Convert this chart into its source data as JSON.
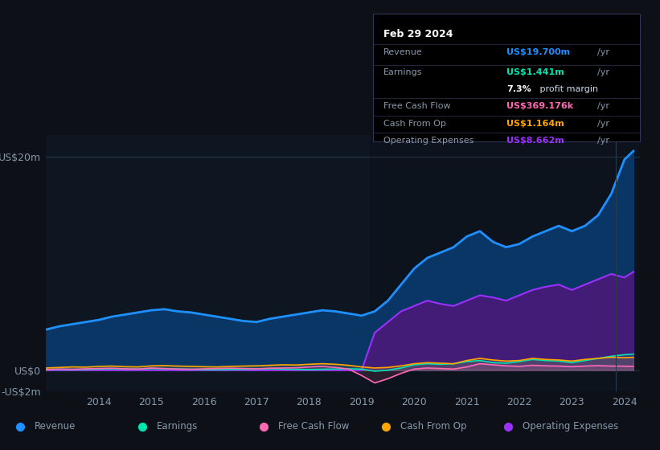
{
  "bg_color": "#0d1117",
  "plot_bg_color": "#0e1621",
  "text_color": "#8899aa",
  "years": [
    2013.0,
    2013.25,
    2013.5,
    2013.75,
    2014.0,
    2014.25,
    2014.5,
    2014.75,
    2015.0,
    2015.25,
    2015.5,
    2015.75,
    2016.0,
    2016.25,
    2016.5,
    2016.75,
    2017.0,
    2017.25,
    2017.5,
    2017.75,
    2018.0,
    2018.25,
    2018.5,
    2018.75,
    2019.0,
    2019.25,
    2019.5,
    2019.75,
    2020.0,
    2020.25,
    2020.5,
    2020.75,
    2021.0,
    2021.25,
    2021.5,
    2021.75,
    2022.0,
    2022.25,
    2022.5,
    2022.75,
    2023.0,
    2023.25,
    2023.5,
    2023.75,
    2024.0,
    2024.17
  ],
  "revenue": [
    3.8,
    4.1,
    4.3,
    4.5,
    4.7,
    5.0,
    5.2,
    5.4,
    5.6,
    5.7,
    5.5,
    5.4,
    5.2,
    5.0,
    4.8,
    4.6,
    4.5,
    4.8,
    5.0,
    5.2,
    5.4,
    5.6,
    5.5,
    5.3,
    5.1,
    5.5,
    6.5,
    8.0,
    9.5,
    10.5,
    11.0,
    11.5,
    12.5,
    13.0,
    12.0,
    11.5,
    11.8,
    12.5,
    13.0,
    13.5,
    13.0,
    13.5,
    14.5,
    16.5,
    19.7,
    20.5
  ],
  "earnings": [
    0.05,
    0.08,
    0.06,
    0.07,
    0.1,
    0.12,
    0.1,
    0.09,
    0.15,
    0.12,
    0.1,
    0.08,
    0.05,
    0.04,
    0.06,
    0.08,
    0.1,
    0.12,
    0.1,
    0.08,
    0.05,
    0.08,
    0.1,
    0.12,
    0.1,
    -0.1,
    0.0,
    0.2,
    0.5,
    0.6,
    0.55,
    0.6,
    0.8,
    0.9,
    0.7,
    0.65,
    0.8,
    1.0,
    0.9,
    0.85,
    0.7,
    0.9,
    1.1,
    1.3,
    1.441,
    1.5
  ],
  "free_cash_flow": [
    0.05,
    0.1,
    0.08,
    0.12,
    0.15,
    0.18,
    0.12,
    0.1,
    0.2,
    0.15,
    0.1,
    0.08,
    0.12,
    0.15,
    0.18,
    0.15,
    0.12,
    0.18,
    0.2,
    0.22,
    0.3,
    0.35,
    0.25,
    0.1,
    -0.5,
    -1.2,
    -0.8,
    -0.3,
    0.1,
    0.2,
    0.15,
    0.1,
    0.3,
    0.6,
    0.5,
    0.4,
    0.35,
    0.45,
    0.4,
    0.38,
    0.32,
    0.38,
    0.42,
    0.38,
    0.369,
    0.35
  ],
  "cash_from_op": [
    0.2,
    0.25,
    0.3,
    0.28,
    0.35,
    0.38,
    0.32,
    0.3,
    0.4,
    0.42,
    0.38,
    0.35,
    0.32,
    0.3,
    0.35,
    0.38,
    0.4,
    0.45,
    0.5,
    0.48,
    0.55,
    0.6,
    0.55,
    0.45,
    0.3,
    0.2,
    0.25,
    0.4,
    0.6,
    0.7,
    0.65,
    0.6,
    0.9,
    1.1,
    0.95,
    0.85,
    0.9,
    1.1,
    1.0,
    0.95,
    0.85,
    1.0,
    1.1,
    1.2,
    1.164,
    1.2
  ],
  "op_expenses": [
    0.0,
    0.0,
    0.0,
    0.0,
    0.0,
    0.0,
    0.0,
    0.0,
    0.0,
    0.0,
    0.0,
    0.0,
    0.0,
    0.0,
    0.0,
    0.0,
    0.0,
    0.0,
    0.0,
    0.0,
    0.0,
    0.0,
    0.0,
    0.0,
    0.0,
    3.5,
    4.5,
    5.5,
    6.0,
    6.5,
    6.2,
    6.0,
    6.5,
    7.0,
    6.8,
    6.5,
    7.0,
    7.5,
    7.8,
    8.0,
    7.5,
    8.0,
    8.5,
    9.0,
    8.662,
    9.2
  ],
  "revenue_color": "#1e90ff",
  "revenue_fill": "#0a3a6e",
  "earnings_color": "#00e5b0",
  "fcf_color": "#ff69b4",
  "cash_op_color": "#ffa500",
  "op_expenses_color": "#9b30ff",
  "op_expenses_fill": "#4a1a7a",
  "info_box": {
    "date": "Feb 29 2024",
    "revenue_label": "Revenue",
    "revenue_value": "US$19.700m",
    "revenue_color": "#1e90ff",
    "earnings_label": "Earnings",
    "earnings_value": "US$1.441m",
    "earnings_color": "#00e5b0",
    "margin_text": "7.3%",
    "margin_label": " profit margin",
    "fcf_label": "Free Cash Flow",
    "fcf_value": "US$369.176k",
    "fcf_color": "#ff69b4",
    "cashop_label": "Cash From Op",
    "cashop_value": "US$1.164m",
    "cashop_color": "#ffa500",
    "opex_label": "Operating Expenses",
    "opex_value": "US$8.662m",
    "opex_color": "#9b30ff"
  },
  "legend": [
    {
      "label": "Revenue",
      "color": "#1e90ff"
    },
    {
      "label": "Earnings",
      "color": "#00e5b0"
    },
    {
      "label": "Free Cash Flow",
      "color": "#ff69b4"
    },
    {
      "label": "Cash From Op",
      "color": "#ffa500"
    },
    {
      "label": "Operating Expenses",
      "color": "#9b30ff"
    }
  ],
  "ylim": [
    -2.0,
    22.0
  ],
  "xlim": [
    2013.0,
    2024.3
  ],
  "yticks": [
    -2,
    0,
    20
  ],
  "ytick_labels": [
    "-US$2m",
    "US$0",
    "US$20m"
  ],
  "xticks": [
    2014,
    2015,
    2016,
    2017,
    2018,
    2019,
    2020,
    2021,
    2022,
    2023,
    2024
  ]
}
